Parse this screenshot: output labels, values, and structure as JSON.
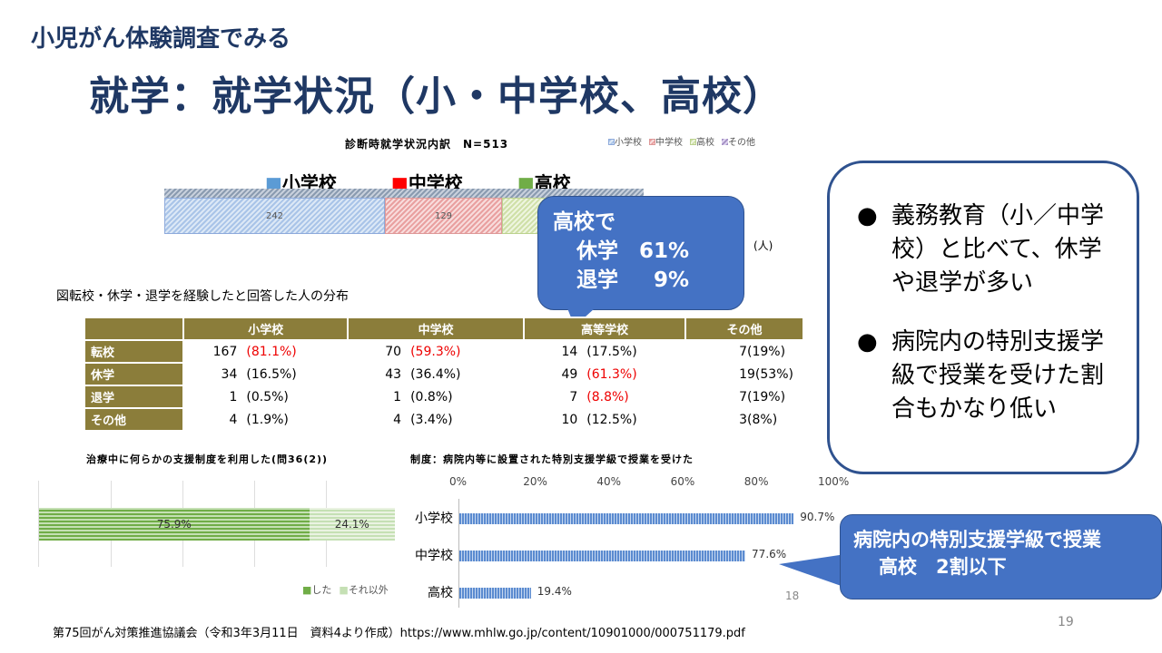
{
  "slide": {
    "subtitle": "小児がん体験調査でみる",
    "title": "就学：就学状況（小・中学校、高校）",
    "page_number": "19",
    "inner_page_number": "18",
    "source": "第75回がん対策推進協議会（令和3年3月11日　資料4より作成）https://www.mhlw.go.jp/content/10901000/000751179.pdf"
  },
  "top_chart": {
    "title": "診断時就学状況内訳　N=513",
    "legend": [
      "小学校",
      "中学校",
      "高校",
      "その他"
    ],
    "big_legend": [
      "小学校",
      "中学校",
      "高校"
    ],
    "unit": "(人)",
    "colors": {
      "小学校": "#5b9bd5",
      "中学校": "#ff0000",
      "高校": "#70ad47",
      "その他": "#8064a2"
    },
    "chart_data": {
      "type": "bar",
      "stacked": true,
      "categories": [
        "小学校",
        "中学校",
        "高校",
        "その他"
      ],
      "values": [
        242,
        129,
        null,
        null
      ],
      "labels": [
        "242",
        "129"
      ]
    }
  },
  "callout1": {
    "line1": "高校で",
    "line2": "休学　61%",
    "line3": "退学　  9%"
  },
  "table": {
    "caption": "図転校・休学・退学を経験したと回答した人の分布",
    "headers": [
      "",
      "小学校",
      "中学校",
      "高等学校",
      "その他"
    ],
    "rows": [
      {
        "label": "転校",
        "cells": [
          [
            "167",
            "(81.1%)",
            true
          ],
          [
            "70",
            "(59.3%)",
            true
          ],
          [
            "14",
            "(17.5%)",
            false
          ],
          [
            "7(19%)",
            "",
            false
          ]
        ]
      },
      {
        "label": "休学",
        "cells": [
          [
            "34",
            "(16.5%)",
            false
          ],
          [
            "43",
            "(36.4%)",
            false
          ],
          [
            "49",
            "(61.3%)",
            true
          ],
          [
            "19(53%)",
            "",
            false
          ]
        ]
      },
      {
        "label": "退学",
        "cells": [
          [
            "1",
            "(0.5%)",
            false
          ],
          [
            "1",
            "(0.8%)",
            false
          ],
          [
            "7",
            "(8.8%)",
            true
          ],
          [
            "7(19%)",
            "",
            false
          ]
        ]
      },
      {
        "label": "その他",
        "cells": [
          [
            "4",
            "(1.9%)",
            false
          ],
          [
            "4",
            "(3.4%)",
            false
          ],
          [
            "10",
            "(12.5%)",
            false
          ],
          [
            "3(8%)",
            "",
            false
          ]
        ]
      }
    ]
  },
  "left_chart": {
    "chart_data": {
      "type": "bar",
      "stacked": true,
      "title": "治療中に何らかの支援制度を利用した(問36(2))",
      "series": [
        {
          "name": "した",
          "value": 75.9,
          "label": "75.9%"
        },
        {
          "name": "それ以外",
          "value": 24.1,
          "label": "24.1%"
        }
      ]
    },
    "colors": [
      "#70ad47",
      "#c5e0b4"
    ]
  },
  "right_chart": {
    "chart_data": {
      "type": "bar",
      "orientation": "horizontal",
      "title": "制度：病院内等に設置された特別支援学級で授業を受けた",
      "categories": [
        "小学校",
        "中学校",
        "高校"
      ],
      "values": [
        90.7,
        77.6,
        19.4
      ],
      "labels": [
        "90.7%",
        "77.6%",
        "19.4%"
      ],
      "xlim": [
        0,
        100
      ],
      "ticks": [
        "0%",
        "20%",
        "40%",
        "60%",
        "80%",
        "100%"
      ]
    }
  },
  "bullets": [
    "義務教育（小／中学校）と比べて、休学や退学が多い",
    "病院内の特別支援学級で授業を受けた割合もかなり低い"
  ],
  "callout2": {
    "line1": "病院内の特別支援学級で授業",
    "line2": "高校　2割以下"
  }
}
